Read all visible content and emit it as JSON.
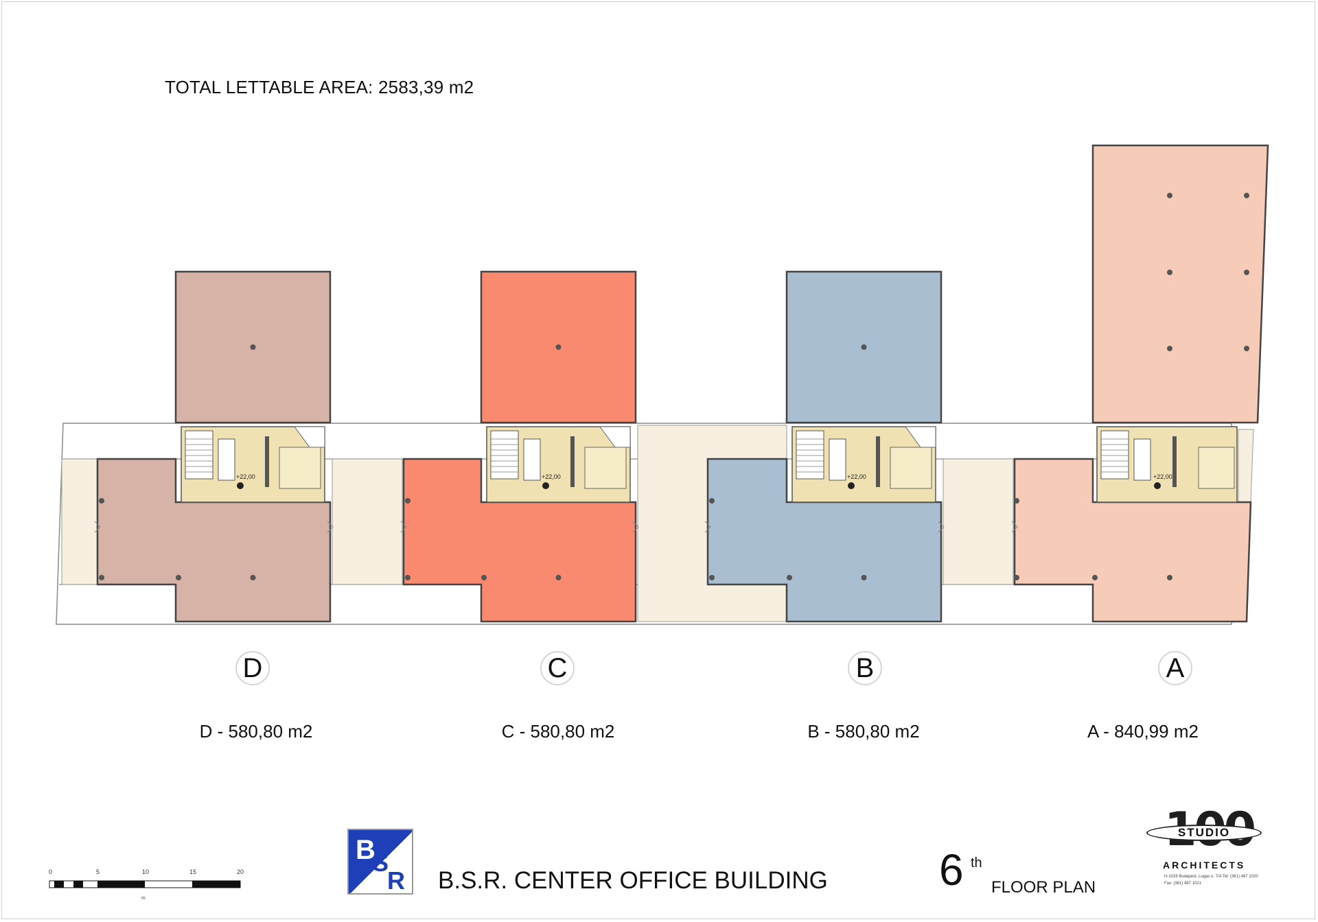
{
  "header": {
    "total_area": "TOTAL LETTABLE AREA:  2583,39 m2"
  },
  "colors": {
    "block_D": "#d7b2a7",
    "block_C": "#fa8a6f",
    "block_B": "#a9bed0",
    "block_A": "#f6cbb7",
    "connector": "#f7efdf",
    "core": "#efe1b2",
    "outline": "#444444"
  },
  "blocks": [
    {
      "id": "D",
      "marker": "D",
      "area": "D - 580,80 m2",
      "level": "+22,00",
      "color": "block_D"
    },
    {
      "id": "C",
      "marker": "C",
      "area": "C - 580,80 m2",
      "level": "+22,00",
      "color": "block_C"
    },
    {
      "id": "B",
      "marker": "B",
      "area": "B - 580,80 m2",
      "level": "+22,00",
      "color": "block_B"
    },
    {
      "id": "A",
      "marker": "A",
      "area": "A - 840,99 m2",
      "level": "+22,00",
      "color": "block_A"
    }
  ],
  "footer": {
    "project_title": "B.S.R. CENTER OFFICE BUILDING",
    "floor_number": "6",
    "floor_suffix": "th",
    "floor_label": "FLOOR PLAN",
    "bsr_logo_text": "BSR",
    "scale_ticks": [
      "0",
      "5",
      "10",
      "15",
      "20"
    ],
    "scale_unit": "m",
    "studio_number": "100",
    "studio_word": "STUDIO",
    "studio_subtitle": "ARCHITECTS",
    "studio_address": "H-1026 Budapest, Lugas u. 7/A Tel: (361) 487 1020 Fax: (361) 487 1021"
  }
}
